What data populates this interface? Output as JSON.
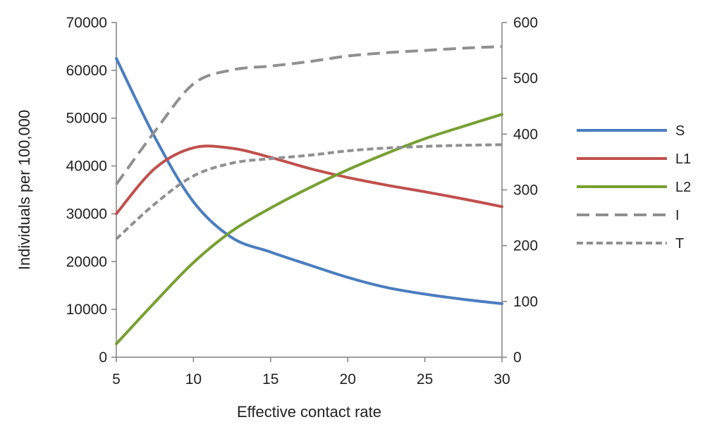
{
  "chart_data": {
    "type": "line",
    "xlabel": "Effective contact rate",
    "ylabel": "Individuals per 100,000",
    "xlim": [
      5,
      30
    ],
    "ylim": [
      0,
      70000
    ],
    "y2lim": [
      0,
      600
    ],
    "x_ticks": [
      5,
      10,
      15,
      20,
      25,
      30
    ],
    "y_ticks": [
      0,
      10000,
      20000,
      30000,
      40000,
      50000,
      60000,
      70000
    ],
    "y2_ticks": [
      0,
      100,
      200,
      300,
      400,
      500,
      600
    ],
    "grid": false,
    "legend_position": "right",
    "x": [
      5,
      7.5,
      10,
      12.5,
      15,
      17.5,
      20,
      22.5,
      25,
      27.5,
      30
    ],
    "series": [
      {
        "name": "S",
        "axis": "left",
        "color": "#4a7ebf",
        "dash": "solid",
        "values": [
          62500,
          46000,
          32500,
          25000,
          22000,
          19300,
          16700,
          14600,
          13200,
          12100,
          11200
        ]
      },
      {
        "name": "L1",
        "axis": "left",
        "color": "#c0504d",
        "dash": "solid",
        "values": [
          30000,
          39500,
          43800,
          43700,
          41800,
          39500,
          37600,
          36000,
          34600,
          33100,
          31500
        ]
      },
      {
        "name": "L2",
        "axis": "left",
        "color": "#77a033",
        "dash": "solid",
        "values": [
          2800,
          11500,
          19800,
          26400,
          31200,
          35400,
          39200,
          42600,
          45700,
          48300,
          50800
        ]
      },
      {
        "name": "I",
        "axis": "right",
        "color": "#909090",
        "dash": "long",
        "values": [
          310,
          405,
          490,
          515,
          522,
          530,
          540,
          546,
          550,
          554,
          557
        ]
      },
      {
        "name": "T",
        "axis": "right",
        "color": "#909090",
        "dash": "short",
        "values": [
          212,
          275,
          325,
          348,
          356,
          362,
          370,
          375,
          378,
          380,
          381
        ]
      }
    ]
  }
}
